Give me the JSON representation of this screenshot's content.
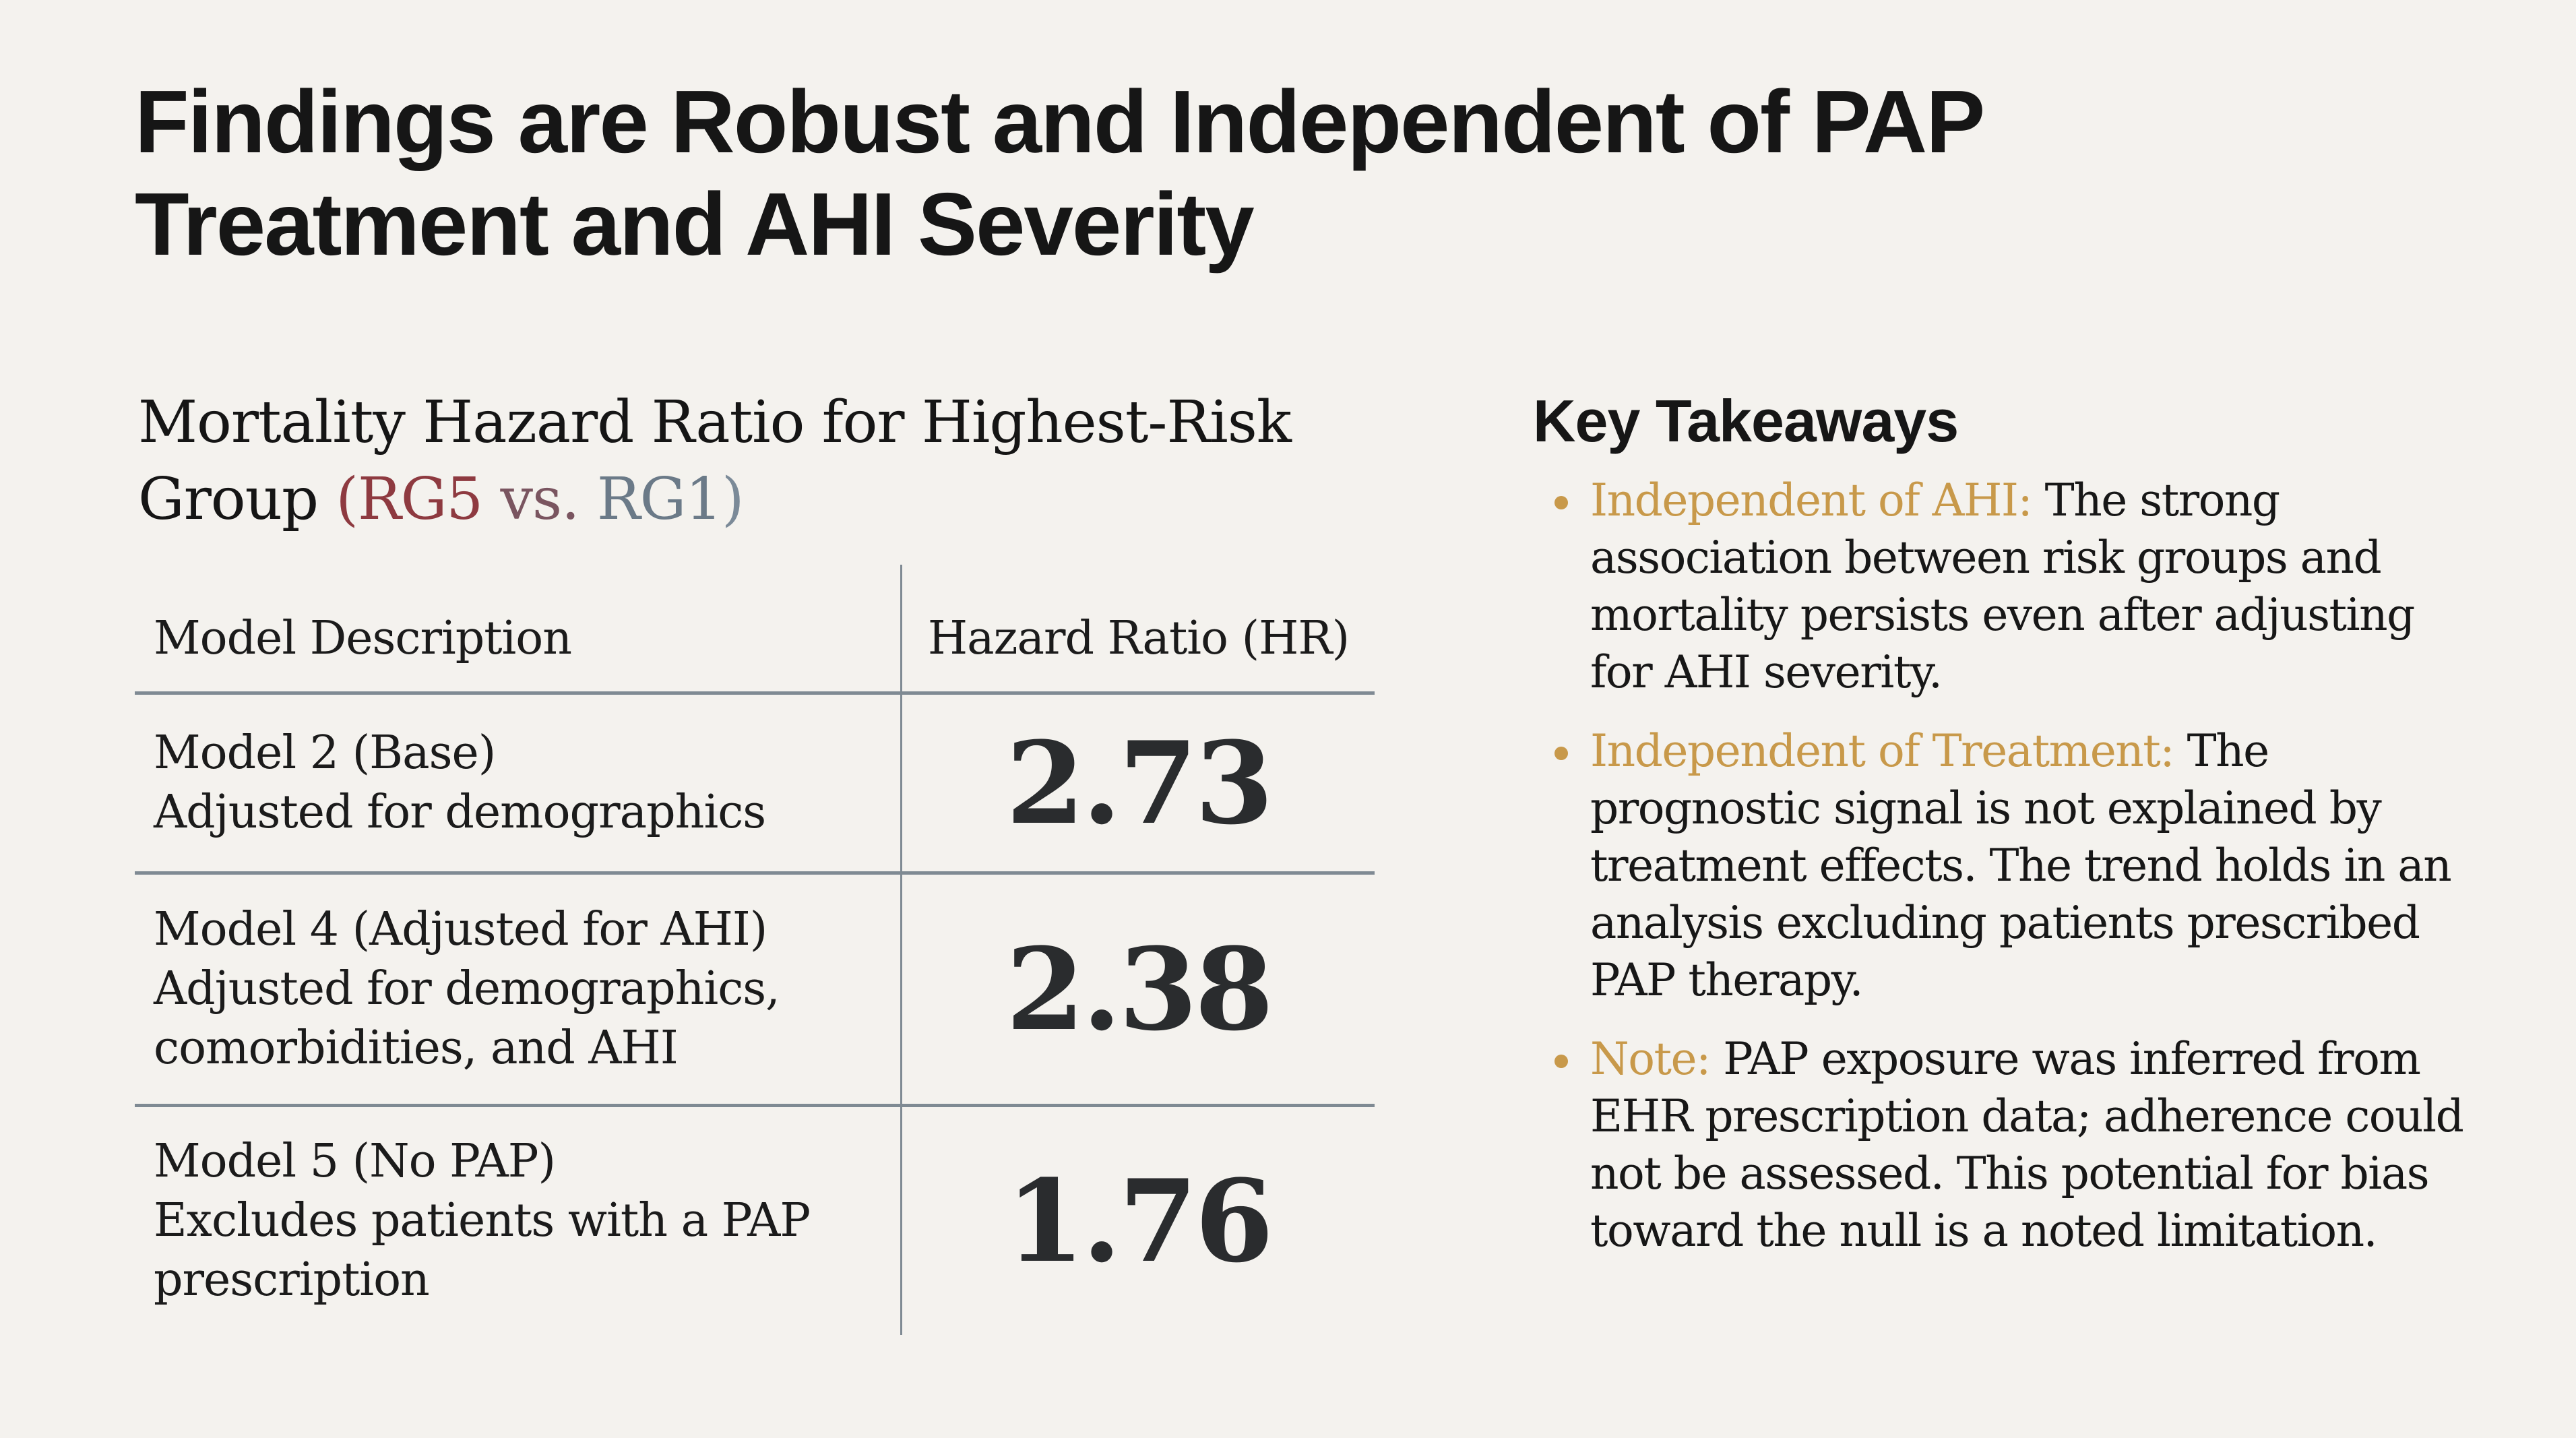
{
  "slide": {
    "title": "Findings are Robust and Independent of PAP Treatment and AHI Severity",
    "background_color": "#f4f2ee"
  },
  "chart_section": {
    "heading_main": "Mortality Hazard Ratio for Highest-Risk Group",
    "heading_paren_open": "(",
    "heading_rg5": "RG5",
    "heading_vs": "vs.",
    "heading_rg1": "RG1",
    "heading_paren_close": ")",
    "colors": {
      "rg5": "#8e3a40",
      "rg1": "#6b7a88",
      "rules": "#7f8a93"
    }
  },
  "table": {
    "headers": {
      "description": "Model Description",
      "hazard_ratio": "Hazard Ratio (HR)"
    },
    "rows": [
      {
        "model": "Model 2 (Base)",
        "description": "Adjusted for demographics",
        "hr": "2.73"
      },
      {
        "model": "Model 4 (Adjusted for AHI)",
        "description": "Adjusted for demographics, comorbidities, and AHI",
        "hr": "2.38"
      },
      {
        "model": "Model 5 (No PAP)",
        "description": "Excludes patients with a PAP prescription",
        "hr": "1.76"
      }
    ]
  },
  "chart_data": {
    "type": "table",
    "title": "Mortality Hazard Ratio for Highest-Risk Group (RG5 vs. RG1)",
    "columns": [
      "Model Description",
      "Hazard Ratio (HR)"
    ],
    "categories": [
      "Model 2 (Base)",
      "Model 4 (Adjusted for AHI)",
      "Model 5 (No PAP)"
    ],
    "descriptions": [
      "Adjusted for demographics",
      "Adjusted for demographics, comorbidities, and AHI",
      "Excludes patients with a PAP prescription"
    ],
    "values": [
      2.73,
      2.38,
      1.76
    ]
  },
  "takeaways": {
    "title": "Key Takeaways",
    "accent_color": "#c8994a",
    "items": [
      {
        "lead": "Independent of AHI:",
        "text": "The strong association between risk groups and mortality persists even after adjusting for AHI severity."
      },
      {
        "lead": "Independent of Treatment:",
        "text": "The prognostic signal is not explained by treatment effects. The trend holds in an analysis excluding patients prescribed PAP therapy."
      },
      {
        "lead": "Note:",
        "text": "PAP exposure was inferred from EHR prescription data; adherence could not be assessed. This potential for bias toward the null is a noted limitation."
      }
    ]
  }
}
